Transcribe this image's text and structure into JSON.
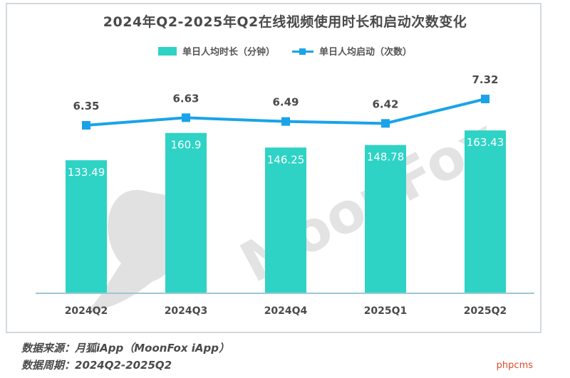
{
  "chart_data": {
    "type": "bar",
    "title": "2024年Q2-2025年Q2在线视频使用时长和启动次数变化",
    "categories": [
      "2024Q2",
      "2024Q3",
      "2024Q4",
      "2025Q1",
      "2025Q2"
    ],
    "series": [
      {
        "name": "单日人均时长（分钟）",
        "type": "bar",
        "color": "#2ed3c5",
        "values": [
          133.49,
          160.9,
          146.25,
          148.78,
          163.43
        ]
      },
      {
        "name": "单日人均启动（次数）",
        "type": "line",
        "color": "#1aa3e8",
        "values": [
          6.35,
          6.63,
          6.49,
          6.42,
          7.32
        ]
      }
    ],
    "grid": false,
    "legend_position": "top"
  },
  "watermark": "MoonFox",
  "footer": {
    "source": "数据来源：月狐iApp（MoonFox iApp）",
    "period": "数据周期：2024Q2-2025Q2"
  },
  "corner_mark": "phpcms"
}
